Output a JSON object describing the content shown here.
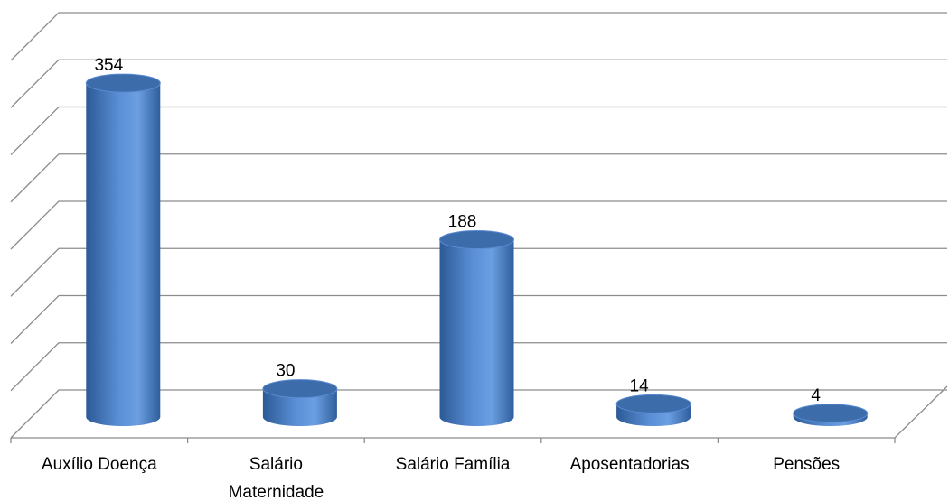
{
  "chart_data": {
    "type": "bar3d",
    "categories": [
      "Auxílio Doença",
      "Salário Maternidade",
      "Salário Família",
      "Aposentadorias",
      "Pensões"
    ],
    "values": [
      354,
      30,
      188,
      14,
      4
    ],
    "color": "#4f81bd",
    "ylim": [
      0,
      400
    ],
    "yticks": [
      0,
      50,
      100,
      150,
      200,
      250,
      300,
      350,
      400
    ],
    "grid": true
  }
}
